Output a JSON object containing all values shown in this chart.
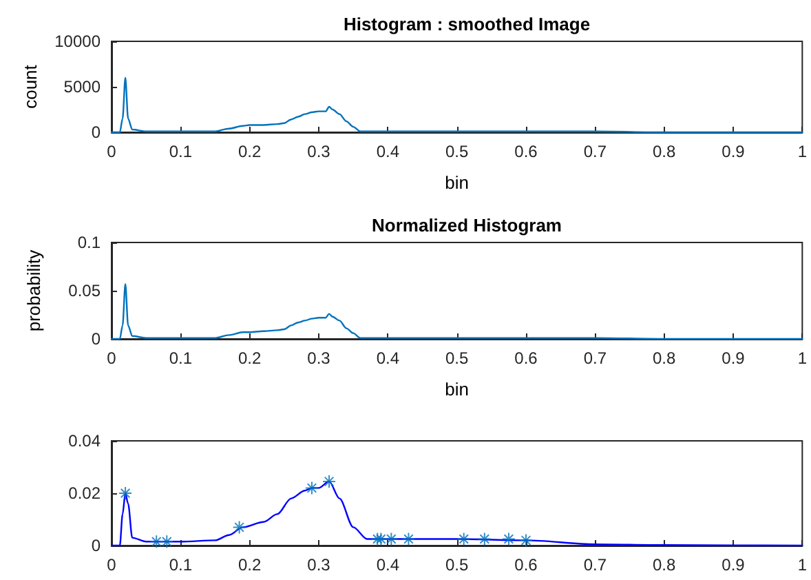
{
  "chart_data": [
    {
      "type": "line",
      "title": "Histogram : smoothed Image",
      "xlabel": "bin",
      "ylabel": "count",
      "xlim": [
        0,
        1
      ],
      "xticks": [
        0,
        0.1,
        0.2,
        0.3,
        0.4,
        0.5,
        0.6,
        0.7,
        0.8,
        0.9,
        1
      ],
      "ylim": [
        0,
        10000
      ],
      "yticks": [
        0,
        5000,
        10000
      ],
      "grid": false,
      "marker": "none",
      "series": [
        {
          "color": "#0072bd",
          "x": [
            0,
            0.012,
            0.016,
            0.02,
            0.024,
            0.03,
            0.05,
            0.1,
            0.15,
            0.17,
            0.19,
            0.2,
            0.22,
            0.24,
            0.25,
            0.26,
            0.27,
            0.28,
            0.29,
            0.3,
            0.31,
            0.315,
            0.32,
            0.33,
            0.34,
            0.35,
            0.36,
            0.4,
            0.5,
            0.6,
            0.7,
            0.8,
            0.9,
            1
          ],
          "values": [
            0,
            0,
            1500,
            6000,
            1500,
            300,
            100,
            100,
            100,
            400,
            700,
            800,
            800,
            900,
            1000,
            1400,
            1700,
            2000,
            2200,
            2300,
            2300,
            2800,
            2500,
            2000,
            1200,
            600,
            100,
            100,
            100,
            100,
            100,
            0,
            0,
            0
          ]
        }
      ]
    },
    {
      "type": "line",
      "title": "Normalized Histogram",
      "xlabel": "bin",
      "ylabel": "probability",
      "xlim": [
        0,
        1
      ],
      "xticks": [
        0,
        0.1,
        0.2,
        0.3,
        0.4,
        0.5,
        0.6,
        0.7,
        0.8,
        0.9,
        1
      ],
      "ylim": [
        0,
        0.1
      ],
      "yticks": [
        0,
        0.05,
        0.1
      ],
      "grid": false,
      "marker": "none",
      "series": [
        {
          "color": "#0072bd",
          "x": [
            0,
            0.012,
            0.016,
            0.02,
            0.024,
            0.03,
            0.05,
            0.1,
            0.15,
            0.17,
            0.19,
            0.2,
            0.22,
            0.24,
            0.25,
            0.26,
            0.27,
            0.28,
            0.29,
            0.3,
            0.31,
            0.315,
            0.32,
            0.33,
            0.34,
            0.35,
            0.36,
            0.4,
            0.5,
            0.6,
            0.7,
            0.8,
            0.9,
            1
          ],
          "values": [
            0,
            0,
            0.014,
            0.057,
            0.014,
            0.003,
            0.001,
            0.001,
            0.001,
            0.004,
            0.007,
            0.007,
            0.008,
            0.009,
            0.01,
            0.014,
            0.017,
            0.019,
            0.021,
            0.022,
            0.022,
            0.026,
            0.023,
            0.019,
            0.011,
            0.006,
            0.001,
            0.001,
            0.001,
            0.001,
            0.001,
            0,
            0,
            0
          ]
        }
      ]
    },
    {
      "type": "line",
      "xlim": [
        0,
        1
      ],
      "xticks": [
        0,
        0.1,
        0.2,
        0.3,
        0.4,
        0.5,
        0.6,
        0.7,
        0.8,
        0.9,
        1
      ],
      "ylim": [
        0,
        0.04
      ],
      "yticks": [
        0,
        0.02,
        0.04
      ],
      "grid": false,
      "series": [
        {
          "color": "#0000ff",
          "marker": "none",
          "x": [
            0,
            0.012,
            0.016,
            0.02,
            0.024,
            0.03,
            0.05,
            0.1,
            0.15,
            0.17,
            0.19,
            0.22,
            0.24,
            0.26,
            0.28,
            0.29,
            0.3,
            0.315,
            0.33,
            0.35,
            0.37,
            0.4,
            0.5,
            0.6,
            0.7,
            0.8,
            0.9,
            1
          ],
          "values": [
            0,
            0,
            0.012,
            0.02,
            0.016,
            0.003,
            0.0015,
            0.0015,
            0.002,
            0.004,
            0.007,
            0.009,
            0.012,
            0.018,
            0.021,
            0.022,
            0.022,
            0.0245,
            0.018,
            0.007,
            0.0025,
            0.0025,
            0.0025,
            0.002,
            0.0005,
            0.0002,
            0.0001,
            0
          ]
        },
        {
          "type": "scatter",
          "color": "#0072bd",
          "marker": "cross",
          "x": [
            0.02,
            0.065,
            0.08,
            0.185,
            0.29,
            0.315,
            0.385,
            0.39,
            0.405,
            0.43,
            0.51,
            0.54,
            0.575,
            0.6
          ],
          "values": [
            0.02,
            0.0015,
            0.0015,
            0.007,
            0.022,
            0.0245,
            0.0025,
            0.0025,
            0.0025,
            0.0025,
            0.0025,
            0.0025,
            0.0025,
            0.002
          ]
        }
      ]
    }
  ]
}
